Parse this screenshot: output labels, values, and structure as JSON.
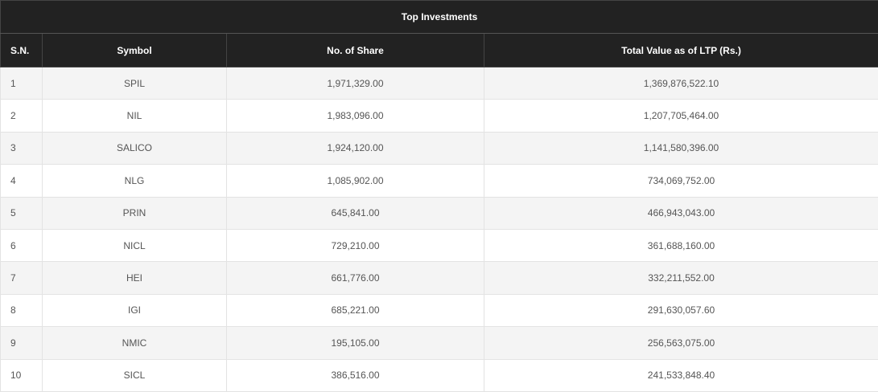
{
  "table": {
    "title": "Top Investments",
    "columns": [
      "S.N.",
      "Symbol",
      "No. of Share",
      "Total Value as of LTP (Rs.)"
    ],
    "rows": [
      [
        "1",
        "SPIL",
        "1,971,329.00",
        "1,369,876,522.10"
      ],
      [
        "2",
        "NIL",
        "1,983,096.00",
        "1,207,705,464.00"
      ],
      [
        "3",
        "SALICO",
        "1,924,120.00",
        "1,141,580,396.00"
      ],
      [
        "4",
        "NLG",
        "1,085,902.00",
        "734,069,752.00"
      ],
      [
        "5",
        "PRIN",
        "645,841.00",
        "466,943,043.00"
      ],
      [
        "6",
        "NICL",
        "729,210.00",
        "361,688,160.00"
      ],
      [
        "7",
        "HEI",
        "661,776.00",
        "332,211,552.00"
      ],
      [
        "8",
        "IGI",
        "685,221.00",
        "291,630,057.60"
      ],
      [
        "9",
        "NMIC",
        "195,105.00",
        "256,563,075.00"
      ],
      [
        "10",
        "SICL",
        "386,516.00",
        "241,533,848.40"
      ]
    ]
  }
}
